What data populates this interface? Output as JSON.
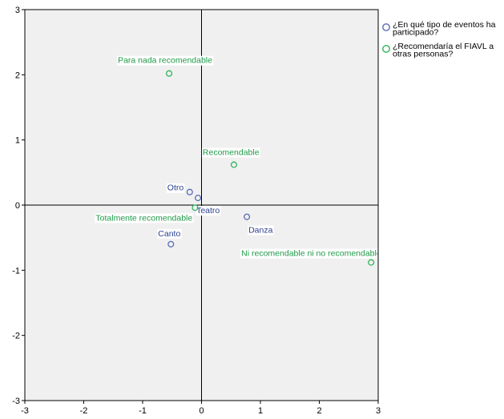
{
  "chart_data": {
    "type": "scatter",
    "xlim": [
      -3,
      3
    ],
    "ylim": [
      -3,
      3
    ],
    "x_ticks": [
      -3,
      -2,
      -1,
      0,
      1,
      2,
      3
    ],
    "y_ticks": [
      -3,
      -2,
      -1,
      0,
      1,
      2,
      3
    ],
    "grid": false,
    "reference_lines": [
      0,
      0
    ],
    "plot_background": "#f0f0f0",
    "legend_position": "right",
    "series": [
      {
        "name": "¿En qué tipo de eventos ha participado?",
        "legend_lines": [
          "¿En qué tipo de eventos ha",
          "participado?"
        ],
        "color": "#5b6bb5",
        "label_color": "#2a3f8f",
        "points": [
          {
            "label": "Otro",
            "x": -0.2,
            "y": 0.2
          },
          {
            "label": "Teatro",
            "x": -0.06,
            "y": 0.11
          },
          {
            "label": "Danza",
            "x": 0.77,
            "y": -0.18
          },
          {
            "label": "Canto",
            "x": -0.52,
            "y": -0.6
          }
        ]
      },
      {
        "name": "¿Recomendaría el FIAVL a otras personas?",
        "legend_lines": [
          "¿Recomendaría el FIAVL a",
          "otras personas?"
        ],
        "color": "#2fb45a",
        "label_color": "#1f9a48",
        "points": [
          {
            "label": "Para nada recomendable",
            "x": -0.55,
            "y": 2.02
          },
          {
            "label": "Recomendable",
            "x": 0.55,
            "y": 0.62
          },
          {
            "label": "Totalmente recomendable",
            "x": -0.11,
            "y": -0.04
          },
          {
            "label": "Ni recomendable ni no recomendable",
            "x": 2.88,
            "y": -0.88
          }
        ]
      }
    ]
  }
}
